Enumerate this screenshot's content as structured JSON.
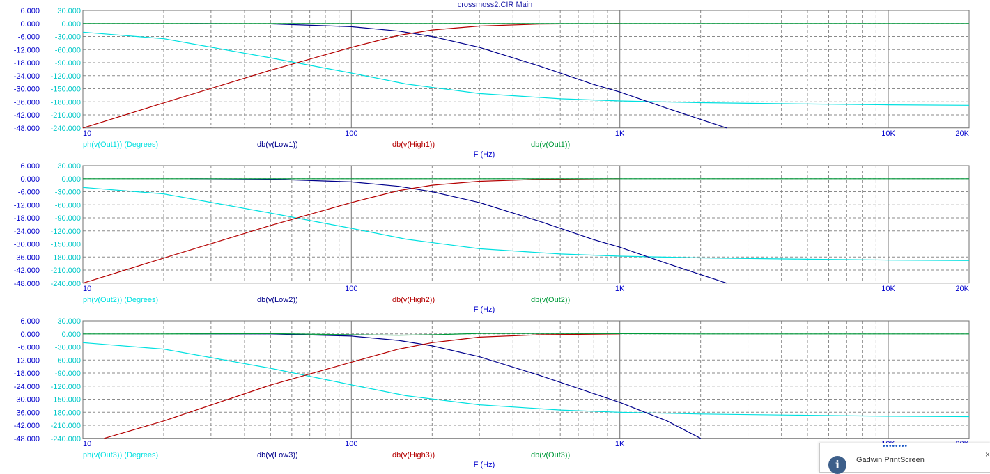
{
  "window_title": "crossmoss2.CIR Main",
  "colors": {
    "phase": "#00e0e0",
    "low": "#00008b",
    "high": "#b40000",
    "out": "#009a3a",
    "grid": "#8a8a8a",
    "left_axis": "#0000cc",
    "phase_axis": "#00c8c8"
  },
  "chart_data": [
    {
      "type": "line",
      "title": "crossmoss2.CIR Main",
      "xscale": "log",
      "xlabel": "F (Hz)",
      "grid": true,
      "xlim": [
        10,
        20000
      ],
      "x_ticks": [
        {
          "v": 10,
          "t": "10"
        },
        {
          "v": 100,
          "t": "100"
        },
        {
          "v": 1000,
          "t": "1K"
        },
        {
          "v": 10000,
          "t": "10K"
        },
        {
          "v": 20000,
          "t": "20K"
        }
      ],
      "ylim_db": [
        -48,
        6
      ],
      "y_ticks_db": [
        "6.000",
        "0.000",
        "-6.000",
        "-12.000",
        "-18.000",
        "-24.000",
        "-30.000",
        "-36.000",
        "-42.000",
        "-48.000"
      ],
      "ylim_phase": [
        -240,
        30
      ],
      "y_ticks_phase": [
        "30.000",
        "0.000",
        "-30.000",
        "-60.000",
        "-90.000",
        "-120.000",
        "-150.000",
        "-180.000",
        "-210.000",
        "-240.000"
      ],
      "legend": [
        "ph(v(Out1)) (Degrees)",
        "db(v(Low1))",
        "db(v(High1))",
        "db(v(Out1))"
      ],
      "series": [
        {
          "name": "ph(v(Out1)) (Degrees)",
          "axis": "phase",
          "x": [
            10,
            20,
            50,
            100,
            160,
            300,
            600,
            1000,
            2000,
            5000,
            10000,
            20000
          ],
          "y": [
            -20,
            -35,
            -79,
            -114,
            -139,
            -161,
            -173,
            -178,
            -182,
            -185,
            -187,
            -188
          ]
        },
        {
          "name": "db(v(Low1))",
          "axis": "db",
          "x": [
            25,
            50,
            100,
            150,
            200,
            300,
            500,
            800,
            1000,
            1500,
            2500
          ],
          "y": [
            0,
            -0.2,
            -1.5,
            -3.5,
            -6,
            -11,
            -19.5,
            -28,
            -31.5,
            -39,
            -48
          ]
        },
        {
          "name": "db(v(High1))",
          "axis": "db",
          "x": [
            10,
            20,
            50,
            100,
            150,
            200,
            300,
            500,
            1000
          ],
          "y": [
            -48,
            -36.5,
            -21.5,
            -11,
            -5.5,
            -3,
            -1.2,
            -0.3,
            0
          ]
        },
        {
          "name": "db(v(Out1))",
          "axis": "db",
          "x": [
            10,
            20000
          ],
          "y": [
            0,
            0
          ]
        }
      ]
    },
    {
      "type": "line",
      "xscale": "log",
      "xlabel": "F (Hz)",
      "grid": true,
      "xlim": [
        10,
        20000
      ],
      "x_ticks": [
        {
          "v": 10,
          "t": "10"
        },
        {
          "v": 100,
          "t": "100"
        },
        {
          "v": 1000,
          "t": "1K"
        },
        {
          "v": 10000,
          "t": "10K"
        },
        {
          "v": 20000,
          "t": "20K"
        }
      ],
      "ylim_db": [
        -48,
        6
      ],
      "y_ticks_db": [
        "6.000",
        "0.000",
        "-6.000",
        "-12.000",
        "-18.000",
        "-24.000",
        "-30.000",
        "-36.000",
        "-42.000",
        "-48.000"
      ],
      "ylim_phase": [
        -240,
        30
      ],
      "y_ticks_phase": [
        "30.000",
        "0.000",
        "-30.000",
        "-60.000",
        "-90.000",
        "-120.000",
        "-150.000",
        "-180.000",
        "-210.000",
        "-240.000"
      ],
      "legend": [
        "ph(v(Out2)) (Degrees)",
        "db(v(Low2))",
        "db(v(High2))",
        "db(v(Out2))"
      ],
      "series": [
        {
          "name": "ph(v(Out2)) (Degrees)",
          "axis": "phase",
          "x": [
            10,
            20,
            50,
            100,
            160,
            300,
            600,
            1000,
            2000,
            5000,
            10000,
            20000
          ],
          "y": [
            -20,
            -35,
            -79,
            -114,
            -139,
            -161,
            -173,
            -178,
            -182,
            -185,
            -187,
            -188
          ]
        },
        {
          "name": "db(v(Low2))",
          "axis": "db",
          "x": [
            25,
            50,
            100,
            150,
            200,
            300,
            500,
            800,
            1000,
            1500,
            2500
          ],
          "y": [
            0,
            -0.2,
            -1.5,
            -3.5,
            -6,
            -11,
            -19.5,
            -28,
            -31.5,
            -39,
            -48
          ]
        },
        {
          "name": "db(v(High2))",
          "axis": "db",
          "x": [
            10,
            20,
            50,
            100,
            150,
            200,
            300,
            500,
            1000
          ],
          "y": [
            -48,
            -36.5,
            -21.5,
            -11,
            -5.5,
            -3,
            -1.2,
            -0.3,
            0
          ]
        },
        {
          "name": "db(v(Out2))",
          "axis": "db",
          "x": [
            10,
            20000
          ],
          "y": [
            0,
            0
          ]
        }
      ]
    },
    {
      "type": "line",
      "xscale": "log",
      "xlabel": "F (Hz)",
      "grid": true,
      "xlim": [
        10,
        20000
      ],
      "x_ticks": [
        {
          "v": 10,
          "t": "10"
        },
        {
          "v": 100,
          "t": "100"
        },
        {
          "v": 1000,
          "t": "1K"
        },
        {
          "v": 10000,
          "t": "10K"
        },
        {
          "v": 20000,
          "t": "20K"
        }
      ],
      "ylim_db": [
        -48,
        6
      ],
      "y_ticks_db": [
        "6.000",
        "0.000",
        "-6.000",
        "-12.000",
        "-18.000",
        "-24.000",
        "-30.000",
        "-36.000",
        "-42.000",
        "-48.000"
      ],
      "ylim_phase": [
        -240,
        30
      ],
      "y_ticks_phase": [
        "30.000",
        "0.000",
        "-30.000",
        "-60.000",
        "-90.000",
        "-120.000",
        "-150.000",
        "-180.000",
        "-210.000",
        "-240.000"
      ],
      "legend": [
        "ph(v(Out3)) (Degrees)",
        "db(v(Low3))",
        "db(v(High3))",
        "db(v(Out3))"
      ],
      "series": [
        {
          "name": "ph(v(Out3)) (Degrees)",
          "axis": "phase",
          "x": [
            10,
            20,
            50,
            100,
            160,
            300,
            600,
            1000,
            2000,
            5000,
            10000,
            20000
          ],
          "y": [
            -20,
            -35,
            -79,
            -117,
            -142,
            -163,
            -175,
            -180,
            -184,
            -187,
            -189,
            -190
          ]
        },
        {
          "name": "db(v(Low3))",
          "axis": "db",
          "x": [
            25,
            50,
            100,
            150,
            200,
            300,
            500,
            700,
            1000,
            1500,
            2000
          ],
          "y": [
            0,
            0,
            -1,
            -3,
            -5.5,
            -10.5,
            -19,
            -25,
            -31.5,
            -40,
            -48
          ]
        },
        {
          "name": "db(v(High3))",
          "axis": "db",
          "x": [
            12,
            20,
            50,
            100,
            150,
            200,
            300,
            500,
            1000
          ],
          "y": [
            -48,
            -40,
            -23.5,
            -13,
            -7,
            -4,
            -1.5,
            -0.4,
            0
          ]
        },
        {
          "name": "db(v(Out3))",
          "axis": "db",
          "x": [
            10,
            20,
            50,
            100,
            150,
            200,
            300,
            500,
            1000,
            2000,
            20000
          ],
          "y": [
            0,
            0,
            0.1,
            -0.4,
            -0.6,
            -0.4,
            0.2,
            0.2,
            0.1,
            0,
            0
          ]
        }
      ]
    }
  ],
  "toast": {
    "title": "Gadwin PrintScreen",
    "dots": "••••••••",
    "info_glyph": "i",
    "close_glyph": "×"
  }
}
